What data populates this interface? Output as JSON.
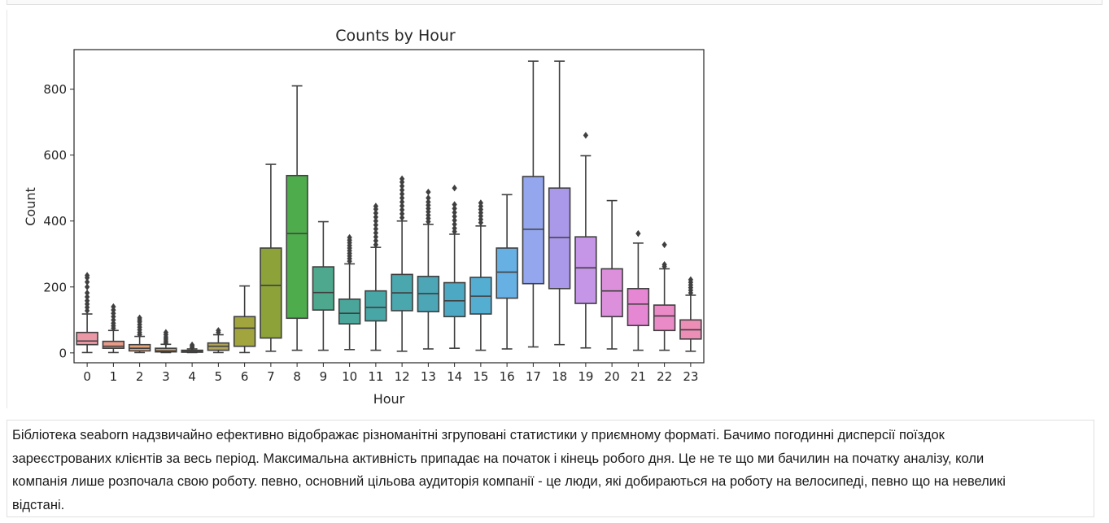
{
  "chart_data": {
    "type": "box",
    "title": "Counts by Hour",
    "xlabel": "Hour",
    "ylabel": "Count",
    "ylim": [
      -30,
      920
    ],
    "yticks": [
      0,
      200,
      400,
      600,
      800
    ],
    "categories": [
      "0",
      "1",
      "2",
      "3",
      "4",
      "5",
      "6",
      "7",
      "8",
      "9",
      "10",
      "11",
      "12",
      "13",
      "14",
      "15",
      "16",
      "17",
      "18",
      "19",
      "20",
      "21",
      "22",
      "23"
    ],
    "boxes": [
      {
        "min": 1,
        "q1": 25,
        "median": 36,
        "q3": 62,
        "max": 118,
        "outliers": [
          128,
          138,
          148,
          158,
          170,
          182,
          200,
          215,
          228,
          235
        ]
      },
      {
        "min": 1,
        "q1": 14,
        "median": 20,
        "q3": 35,
        "max": 68,
        "outliers": [
          75,
          82,
          90,
          100,
          110,
          120,
          130,
          140
        ]
      },
      {
        "min": 1,
        "q1": 6,
        "median": 14,
        "q3": 25,
        "max": 50,
        "outliers": [
          55,
          62,
          70,
          78,
          86,
          94,
          100,
          106
        ]
      },
      {
        "min": 1,
        "q1": 3,
        "median": 6,
        "q3": 14,
        "max": 26,
        "outliers": [
          30,
          36,
          42,
          48,
          55,
          62
        ]
      },
      {
        "min": 1,
        "q1": 2,
        "median": 4,
        "q3": 8,
        "max": 12,
        "outliers": [
          16,
          20,
          24
        ]
      },
      {
        "min": 1,
        "q1": 8,
        "median": 20,
        "q3": 30,
        "max": 55,
        "outliers": [
          62,
          68
        ]
      },
      {
        "min": 1,
        "q1": 20,
        "median": 75,
        "q3": 110,
        "max": 203,
        "outliers": []
      },
      {
        "min": 5,
        "q1": 45,
        "median": 205,
        "q3": 318,
        "max": 572,
        "outliers": []
      },
      {
        "min": 8,
        "q1": 105,
        "median": 362,
        "q3": 538,
        "max": 810,
        "outliers": []
      },
      {
        "min": 8,
        "q1": 130,
        "median": 183,
        "q3": 261,
        "max": 398,
        "outliers": []
      },
      {
        "min": 10,
        "q1": 88,
        "median": 120,
        "q3": 163,
        "max": 270,
        "outliers": [
          278,
          286,
          294,
          302,
          310,
          318,
          326,
          334,
          342,
          350
        ]
      },
      {
        "min": 8,
        "q1": 97,
        "median": 138,
        "q3": 188,
        "max": 320,
        "outliers": [
          328,
          340,
          352,
          364,
          376,
          388,
          400,
          412,
          424,
          436,
          445
        ]
      },
      {
        "min": 5,
        "q1": 128,
        "median": 182,
        "q3": 238,
        "max": 400,
        "outliers": [
          410,
          422,
          434,
          446,
          458,
          470,
          482,
          494,
          506,
          518,
          528
        ]
      },
      {
        "min": 12,
        "q1": 125,
        "median": 180,
        "q3": 232,
        "max": 390,
        "outliers": [
          398,
          408,
          418,
          428,
          438,
          448,
          458,
          470,
          488
        ]
      },
      {
        "min": 14,
        "q1": 110,
        "median": 158,
        "q3": 213,
        "max": 360,
        "outliers": [
          368,
          378,
          390,
          402,
          414,
          426,
          438,
          450,
          500
        ]
      },
      {
        "min": 8,
        "q1": 118,
        "median": 172,
        "q3": 229,
        "max": 385,
        "outliers": [
          395,
          405,
          415,
          425,
          435,
          445,
          455
        ]
      },
      {
        "min": 12,
        "q1": 166,
        "median": 245,
        "q3": 318,
        "max": 480,
        "outliers": []
      },
      {
        "min": 18,
        "q1": 210,
        "median": 375,
        "q3": 535,
        "max": 885,
        "outliers": []
      },
      {
        "min": 25,
        "q1": 195,
        "median": 350,
        "q3": 500,
        "max": 885,
        "outliers": []
      },
      {
        "min": 15,
        "q1": 150,
        "median": 258,
        "q3": 352,
        "max": 598,
        "outliers": [
          660
        ]
      },
      {
        "min": 12,
        "q1": 110,
        "median": 188,
        "q3": 255,
        "max": 462,
        "outliers": []
      },
      {
        "min": 8,
        "q1": 83,
        "median": 148,
        "q3": 195,
        "max": 333,
        "outliers": [
          362
        ]
      },
      {
        "min": 8,
        "q1": 68,
        "median": 112,
        "q3": 145,
        "max": 255,
        "outliers": [
          262,
          268,
          328
        ]
      },
      {
        "min": 5,
        "q1": 42,
        "median": 70,
        "q3": 100,
        "max": 175,
        "outliers": [
          182,
          190,
          198,
          206,
          214,
          222
        ]
      }
    ],
    "colors": [
      "#ea98a6",
      "#e79c8a",
      "#e4a47b",
      "#d6a060",
      "#c7a459",
      "#b1a55b",
      "#a2a53e",
      "#8da33a",
      "#4fac4c",
      "#4ea88d",
      "#4aa59a",
      "#49a6a6",
      "#4aa7ae",
      "#4ca6b6",
      "#4da9c3",
      "#54aed2",
      "#67b0e4",
      "#94a6ee",
      "#aa99e9",
      "#c596e7",
      "#dc90db",
      "#e687d4",
      "#ea8bc8",
      "#ec8eb6"
    ],
    "grid": false,
    "legend": "none"
  },
  "markdown": {
    "lines": [
      "Бібліотека seaborn надзвичайно ефективно відображає різноманітні згруповані статистики у приємному форматі. Бачимо погодинні дисперсії поїздок",
      "зареєстрованих клієнтів за весь період. Максимальна активність припадає на початок і кінець робого дня. Це не те що ми бачилин на початку аналізу, коли",
      "компанія лише розпочала свою роботу. певно, основний цільова аудиторія компанії - це люди, які добираються на роботу на велосипеді, певно що на невеликі",
      "відстані."
    ]
  }
}
